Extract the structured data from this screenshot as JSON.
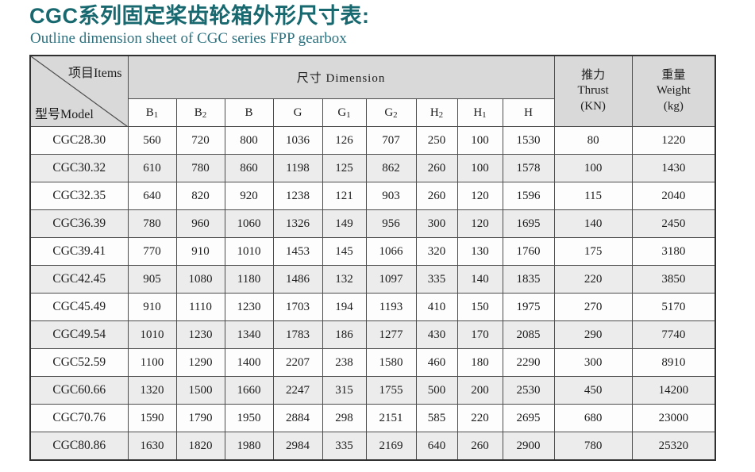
{
  "page": {
    "title": "CGC系列固定桨齿轮箱外形尺寸表:",
    "subtitle": "Outline dimension sheet of CGC series FPP gearbox"
  },
  "colors": {
    "accent_teal": "#17686F",
    "header_bg": "#D9D9D9",
    "row_alt_bg": "#ECECEC",
    "border_dark": "#303030"
  },
  "table": {
    "corner": {
      "top_label": "项目Items",
      "bottom_label": "型号Model"
    },
    "dimension_group_label": "尺寸  Dimension",
    "thrust_header": {
      "zh": "推力",
      "en": "Thrust",
      "unit": "(KN)"
    },
    "weight_header": {
      "zh": "重量",
      "en": "Weight",
      "unit": "(kg)"
    },
    "dim_columns": [
      {
        "base": "B",
        "sub": "1"
      },
      {
        "base": "B",
        "sub": "2"
      },
      {
        "base": "B",
        "sub": ""
      },
      {
        "base": "G",
        "sub": ""
      },
      {
        "base": "G",
        "sub": "1"
      },
      {
        "base": "G",
        "sub": "2"
      },
      {
        "base": "H",
        "sub": "2"
      },
      {
        "base": "H",
        "sub": "1"
      },
      {
        "base": "H",
        "sub": ""
      }
    ],
    "rows": [
      {
        "model": "CGC28.30",
        "values": [
          560,
          720,
          800,
          1036,
          126,
          707,
          250,
          100,
          1530
        ],
        "thrust": 80,
        "weight": 1220
      },
      {
        "model": "CGC30.32",
        "values": [
          610,
          780,
          860,
          1198,
          125,
          862,
          260,
          100,
          1578
        ],
        "thrust": 100,
        "weight": 1430
      },
      {
        "model": "CGC32.35",
        "values": [
          640,
          820,
          920,
          1238,
          121,
          903,
          260,
          120,
          1596
        ],
        "thrust": 115,
        "weight": 2040
      },
      {
        "model": "CGC36.39",
        "values": [
          780,
          960,
          1060,
          1326,
          149,
          956,
          300,
          120,
          1695
        ],
        "thrust": 140,
        "weight": 2450
      },
      {
        "model": "CGC39.41",
        "values": [
          770,
          910,
          1010,
          1453,
          145,
          1066,
          320,
          130,
          1760
        ],
        "thrust": 175,
        "weight": 3180
      },
      {
        "model": "CGC42.45",
        "values": [
          905,
          1080,
          1180,
          1486,
          132,
          1097,
          335,
          140,
          1835
        ],
        "thrust": 220,
        "weight": 3850
      },
      {
        "model": "CGC45.49",
        "values": [
          910,
          1110,
          1230,
          1703,
          194,
          1193,
          410,
          150,
          1975
        ],
        "thrust": 270,
        "weight": 5170
      },
      {
        "model": "CGC49.54",
        "values": [
          1010,
          1230,
          1340,
          1783,
          186,
          1277,
          430,
          170,
          2085
        ],
        "thrust": 290,
        "weight": 7740
      },
      {
        "model": "CGC52.59",
        "values": [
          1100,
          1290,
          1400,
          2207,
          238,
          1580,
          460,
          180,
          2290
        ],
        "thrust": 300,
        "weight": 8910
      },
      {
        "model": "CGC60.66",
        "values": [
          1320,
          1500,
          1660,
          2247,
          315,
          1755,
          500,
          200,
          2530
        ],
        "thrust": 450,
        "weight": 14200
      },
      {
        "model": "CGC70.76",
        "values": [
          1590,
          1790,
          1950,
          2884,
          298,
          2151,
          585,
          220,
          2695
        ],
        "thrust": 680,
        "weight": 23000
      },
      {
        "model": "CGC80.86",
        "values": [
          1630,
          1820,
          1980,
          2984,
          335,
          2169,
          640,
          260,
          2900
        ],
        "thrust": 780,
        "weight": 25320
      }
    ]
  }
}
